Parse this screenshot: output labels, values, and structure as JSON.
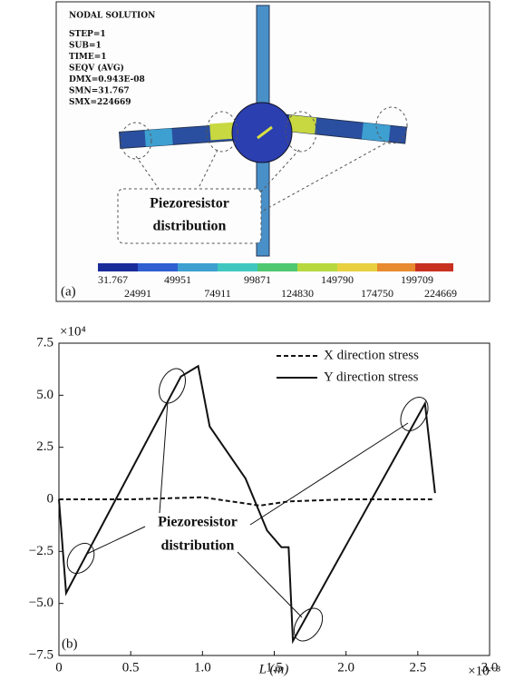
{
  "panel_a": {
    "label": "(a)",
    "header": [
      "NODAL SOLUTION",
      "STEP=1",
      "SUB=1",
      "TIME=1",
      "SEQV      (AVG)",
      "DMX=0.943E-08",
      "SMN=31.767",
      "SMX=224669"
    ],
    "callout": [
      "Piezoresistor",
      "distribution"
    ],
    "colorbar_top": [
      "31.767",
      "49951",
      "99871",
      "149790",
      "199709"
    ],
    "colorbar_bottom": [
      "24991",
      "74911",
      "124830",
      "174750",
      "224669"
    ]
  },
  "chart_data": {
    "type": "line",
    "panel_label": "(b)",
    "x_label": "L (m)",
    "x_multiplier": "×10⁻³",
    "y_multiplier": "×10⁴",
    "xlim": [
      0,
      3
    ],
    "ylim": [
      -7.5,
      7.5
    ],
    "xticks": [
      0,
      0.5,
      {
        "value": 1,
        "label": "1.0"
      },
      1.5,
      {
        "value": 2,
        "label": "2.0"
      },
      2.5,
      {
        "value": 3,
        "label": "3.0"
      }
    ],
    "yticks": [
      7.5,
      {
        "value": 5,
        "label": "5.0"
      },
      2.5,
      0,
      {
        "value": -2.5,
        "label": "−2.5"
      },
      {
        "value": -5,
        "label": "−5.0"
      },
      {
        "value": -7.5,
        "label": "−7.5"
      }
    ],
    "legend": "upper right",
    "annotation": [
      "Piezoresistor",
      "distribution"
    ],
    "series": [
      {
        "name": "X direction stress",
        "color": "#111111",
        "dash": true,
        "x": [
          0,
          0.5,
          1.0,
          1.2,
          1.4,
          1.6,
          2.0,
          2.6
        ],
        "values": [
          0,
          0,
          0.1,
          -0.1,
          -0.3,
          -0.1,
          0,
          0
        ]
      },
      {
        "name": "Y direction stress",
        "color": "#111111",
        "dash": false,
        "x": [
          0,
          0.05,
          0.85,
          0.97,
          1.05,
          1.15,
          1.3,
          1.45,
          1.55,
          1.6,
          1.63,
          2.55,
          2.62
        ],
        "values": [
          0,
          -4.5,
          5.9,
          6.4,
          3.5,
          2.5,
          1.0,
          -1.5,
          -2.3,
          -2.3,
          -6.8,
          4.6,
          0.3
        ]
      }
    ]
  }
}
